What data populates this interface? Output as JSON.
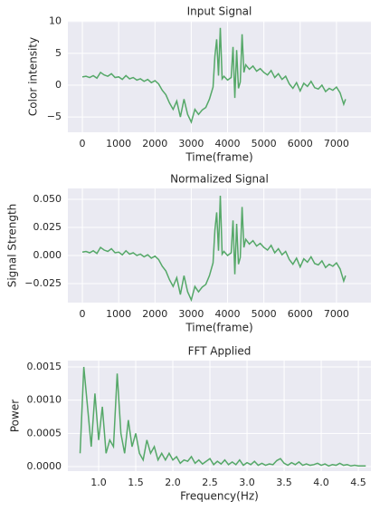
{
  "chart_data": [
    {
      "type": "line",
      "title": "Input Signal",
      "x_label": "Time(frame)",
      "y_label": "Color intensity",
      "color": "#55a868",
      "grid": true,
      "xlim": [
        -400,
        7950
      ],
      "ylim": [
        -7.4,
        10.1
      ],
      "xticks": [
        0,
        1000,
        2000,
        3000,
        4000,
        5000,
        6000,
        7000
      ],
      "yticks": [
        {
          "value": -5,
          "label": "−5"
        },
        0,
        5,
        10
      ],
      "x": [
        0,
        100,
        200,
        300,
        400,
        500,
        600,
        700,
        800,
        900,
        1000,
        1100,
        1200,
        1300,
        1400,
        1500,
        1600,
        1700,
        1800,
        1900,
        2000,
        2100,
        2200,
        2300,
        2400,
        2500,
        2600,
        2700,
        2800,
        2900,
        3000,
        3100,
        3200,
        3300,
        3400,
        3500,
        3600,
        3650,
        3700,
        3750,
        3800,
        3850,
        3900,
        4000,
        4100,
        4150,
        4200,
        4250,
        4300,
        4350,
        4400,
        4450,
        4500,
        4600,
        4700,
        4800,
        4900,
        5000,
        5100,
        5200,
        5300,
        5400,
        5500,
        5600,
        5700,
        5800,
        5900,
        6000,
        6100,
        6200,
        6300,
        6400,
        6500,
        6600,
        6700,
        6800,
        6900,
        7000,
        7100,
        7200,
        7250
      ],
      "values": [
        1.3,
        1.4,
        1.2,
        1.5,
        1.1,
        2.0,
        1.6,
        1.4,
        1.8,
        1.2,
        1.3,
        0.9,
        1.5,
        1.0,
        1.2,
        0.8,
        1.0,
        0.6,
        0.9,
        0.4,
        0.7,
        0.2,
        -0.8,
        -1.5,
        -2.8,
        -3.8,
        -2.5,
        -5.0,
        -2.2,
        -4.6,
        -5.8,
        -3.8,
        -4.6,
        -3.9,
        -3.5,
        -2.2,
        -0.3,
        4.5,
        7.2,
        1.5,
        9.0,
        1.0,
        1.4,
        0.8,
        1.2,
        6.0,
        -2.0,
        5.5,
        -0.5,
        0.5,
        8.0,
        2.0,
        3.2,
        2.5,
        3.0,
        2.2,
        2.6,
        2.0,
        1.6,
        2.3,
        1.2,
        1.8,
        0.9,
        1.4,
        0.2,
        -0.5,
        0.4,
        -0.9,
        0.3,
        -0.2,
        0.6,
        -0.4,
        -0.6,
        0.0,
        -1.0,
        -0.5,
        -0.8,
        -0.3,
        -1.2,
        -3.0,
        -2.2
      ]
    },
    {
      "type": "line",
      "title": "Normalized Signal",
      "x_label": "Time(frame)",
      "y_label": "Signal Strength",
      "color": "#55a868",
      "grid": true,
      "xlim": [
        -400,
        7950
      ],
      "ylim": [
        -0.042,
        0.0597
      ],
      "xticks": [
        0,
        1000,
        2000,
        3000,
        4000,
        5000,
        6000,
        7000
      ],
      "yticks": [
        {
          "value": -0.025,
          "label": "−0.025"
        },
        {
          "value": 0,
          "label": "0.000"
        },
        {
          "value": 0.025,
          "label": "0.025"
        },
        {
          "value": 0.05,
          "label": "0.050"
        }
      ],
      "x": [
        0,
        100,
        200,
        300,
        400,
        500,
        600,
        700,
        800,
        900,
        1000,
        1100,
        1200,
        1300,
        1400,
        1500,
        1600,
        1700,
        1800,
        1900,
        2000,
        2100,
        2200,
        2300,
        2400,
        2500,
        2600,
        2700,
        2800,
        2900,
        3000,
        3100,
        3200,
        3300,
        3400,
        3500,
        3600,
        3650,
        3700,
        3750,
        3800,
        3850,
        3900,
        4000,
        4100,
        4150,
        4200,
        4250,
        4300,
        4350,
        4400,
        4450,
        4500,
        4600,
        4700,
        4800,
        4900,
        5000,
        5100,
        5200,
        5300,
        5400,
        5500,
        5600,
        5700,
        5800,
        5900,
        6000,
        6100,
        6200,
        6300,
        6400,
        6500,
        6600,
        6700,
        6800,
        6900,
        7000,
        7100,
        7200,
        7250
      ],
      "values": [
        0.003,
        0.0036,
        0.0024,
        0.0042,
        0.0018,
        0.0072,
        0.0048,
        0.0036,
        0.006,
        0.0024,
        0.003,
        0.0006,
        0.0042,
        0.0012,
        0.0024,
        0,
        0.0012,
        -0.0012,
        0.0006,
        -0.0024,
        -0.0006,
        -0.0036,
        -0.0096,
        -0.0138,
        -0.0216,
        -0.0276,
        -0.0198,
        -0.0348,
        -0.018,
        -0.0324,
        -0.0396,
        -0.0276,
        -0.0324,
        -0.0282,
        -0.0258,
        -0.018,
        -0.0066,
        0.0222,
        0.0384,
        0.0042,
        0.0532,
        0.0012,
        0.0036,
        0,
        0.0024,
        0.0312,
        -0.0168,
        0.0282,
        -0.0078,
        -0.0018,
        0.0432,
        0.0072,
        0.0144,
        0.0102,
        0.0132,
        0.0084,
        0.0108,
        0.0072,
        0.0048,
        0.009,
        0.0024,
        0.006,
        0.0006,
        0.0036,
        -0.0036,
        -0.0078,
        -0.0024,
        -0.0102,
        -0.003,
        -0.006,
        -0.0012,
        -0.0072,
        -0.0084,
        -0.0048,
        -0.0108,
        -0.0078,
        -0.0096,
        -0.0066,
        -0.012,
        -0.0228,
        -0.018
      ]
    },
    {
      "type": "line",
      "title": "FFT Applied",
      "x_label": "Frequency(Hz)",
      "y_label": "Power",
      "color": "#55a868",
      "grid": true,
      "xlim": [
        0.585,
        4.67
      ],
      "ylim": [
        -6.8e-05,
        0.001595
      ],
      "xticks": [
        {
          "value": 1,
          "label": "1.0"
        },
        {
          "value": 1.5,
          "label": "1.5"
        },
        {
          "value": 2,
          "label": "2.0"
        },
        {
          "value": 2.5,
          "label": "2.5"
        },
        {
          "value": 3,
          "label": "3.0"
        },
        {
          "value": 3.5,
          "label": "3.5"
        },
        {
          "value": 4,
          "label": "4.0"
        },
        {
          "value": 4.5,
          "label": "4.5"
        }
      ],
      "yticks": [
        {
          "value": 0,
          "label": "0.0000"
        },
        0.0005,
        {
          "value": 0.001,
          "label": "0.0010"
        },
        0.0015
      ],
      "x": [
        0.75,
        0.8,
        0.85,
        0.9,
        0.95,
        1.0,
        1.05,
        1.1,
        1.15,
        1.2,
        1.25,
        1.3,
        1.35,
        1.4,
        1.45,
        1.5,
        1.55,
        1.6,
        1.65,
        1.7,
        1.75,
        1.8,
        1.85,
        1.9,
        1.95,
        2.0,
        2.05,
        2.1,
        2.15,
        2.2,
        2.25,
        2.3,
        2.35,
        2.4,
        2.45,
        2.5,
        2.55,
        2.6,
        2.65,
        2.7,
        2.75,
        2.8,
        2.85,
        2.9,
        2.95,
        3.0,
        3.05,
        3.1,
        3.15,
        3.2,
        3.25,
        3.3,
        3.35,
        3.4,
        3.45,
        3.5,
        3.55,
        3.6,
        3.65,
        3.7,
        3.75,
        3.8,
        3.85,
        3.9,
        3.95,
        4.0,
        4.05,
        4.1,
        4.15,
        4.2,
        4.25,
        4.3,
        4.35,
        4.4,
        4.45,
        4.5,
        4.55,
        4.6
      ],
      "values": [
        0.0002,
        0.0015,
        0.0009,
        0.0003,
        0.0011,
        0.0004,
        0.0009,
        0.0002,
        0.0004,
        0.0003,
        0.0014,
        0.0005,
        0.0002,
        0.0007,
        0.0003,
        0.0005,
        0.0002,
        0.0001,
        0.0004,
        0.0002,
        0.0003,
        0.0001,
        0.0002,
        0.0001,
        0.0002,
        0.0001,
        0.00015,
        5e-05,
        0.0001,
        8e-05,
        0.00015,
        5e-05,
        0.0001,
        4e-05,
        8e-05,
        0.00012,
        3e-05,
        8e-05,
        4e-05,
        0.0001,
        3e-05,
        7e-05,
        3e-05,
        0.0001,
        2e-05,
        6e-05,
        3e-05,
        8e-05,
        2e-05,
        5e-05,
        2e-05,
        4e-05,
        3e-05,
        9e-05,
        0.00012,
        5e-05,
        2e-05,
        6e-05,
        3e-05,
        7e-05,
        2e-05,
        4e-05,
        2e-05,
        3e-05,
        5e-05,
        2e-05,
        4e-05,
        1e-05,
        3e-05,
        2e-05,
        5e-05,
        2e-05,
        3e-05,
        1e-05,
        2e-05,
        1e-05,
        1e-05,
        1e-05
      ]
    }
  ]
}
